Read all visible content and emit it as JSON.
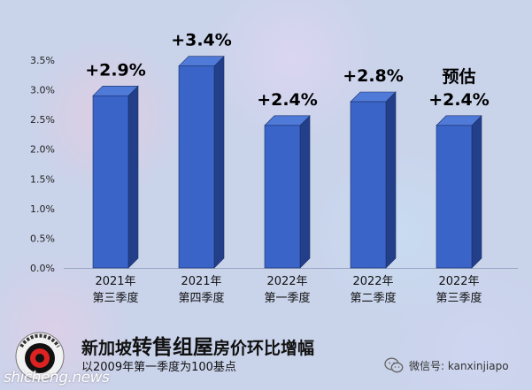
{
  "chart_data": {
    "type": "bar",
    "categories": [
      [
        "2021年",
        "第三季度"
      ],
      [
        "2021年",
        "第四季度"
      ],
      [
        "2022年",
        "第一季度"
      ],
      [
        "2022年",
        "第二季度"
      ],
      [
        "2022年",
        "第三季度"
      ]
    ],
    "values": [
      2.9,
      3.4,
      2.4,
      2.8,
      2.4
    ],
    "data_labels": [
      "+2.9%",
      "+3.4%",
      "+2.4%",
      "+2.8%",
      "+2.4%"
    ],
    "annotation": "预估",
    "yticks": [
      "0.0%",
      "0.5%",
      "1.0%",
      "1.5%",
      "2.0%",
      "2.5%",
      "3.0%",
      "3.5%"
    ],
    "ylim": [
      0,
      3.5
    ],
    "grid": false,
    "bar_color": "#3a64c8"
  },
  "title": {
    "part1": "新加坡",
    "part2": "转售组屋",
    "part3": "房价环比增幅"
  },
  "subtitle": "以2009年第一季度为100基点",
  "watermark": {
    "site": "shicheng.news",
    "wechat_label": "微信号: kanxinjiapo"
  }
}
